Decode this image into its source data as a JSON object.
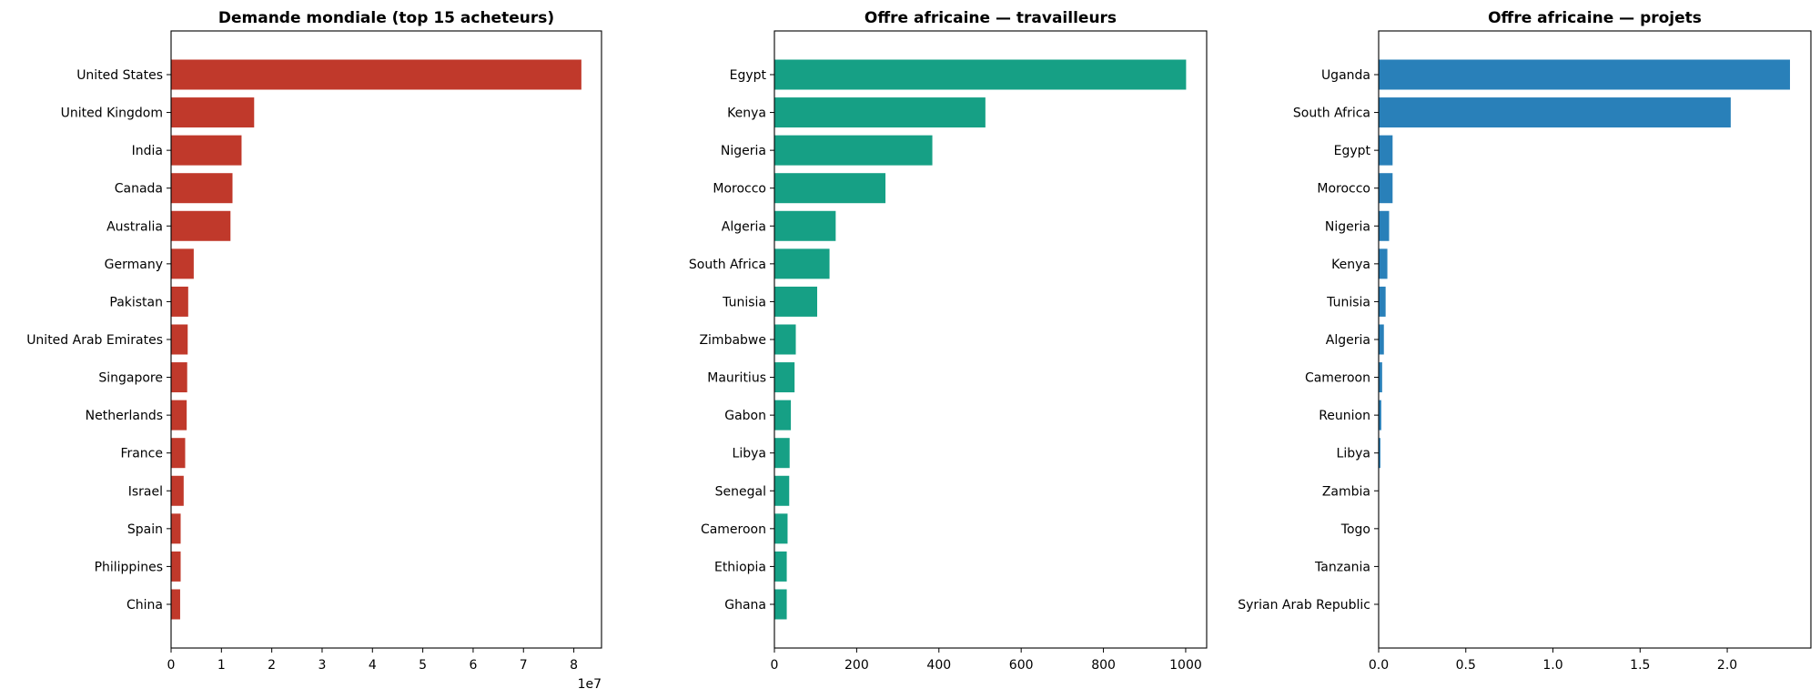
{
  "chart_data": [
    {
      "type": "bar",
      "orientation": "horizontal",
      "title": "Demande mondiale (top 15 acheteurs)",
      "color": "#c0392b",
      "categories": [
        "United States",
        "United Kingdom",
        "India",
        "Canada",
        "Australia",
        "Germany",
        "Pakistan",
        "United Arab Emirates",
        "Singapore",
        "Netherlands",
        "France",
        "Israel",
        "Spain",
        "Philippines",
        "China"
      ],
      "values": [
        81500000,
        16500000,
        14000000,
        12200000,
        11800000,
        4500000,
        3400000,
        3300000,
        3200000,
        3100000,
        2800000,
        2500000,
        1900000,
        1900000,
        1800000
      ],
      "xlim": [
        0,
        85500000
      ],
      "xticks": [
        0,
        10000000,
        20000000,
        30000000,
        40000000,
        50000000,
        60000000,
        70000000,
        80000000
      ],
      "xtick_labels": [
        "0",
        "1",
        "2",
        "3",
        "4",
        "5",
        "6",
        "7",
        "8"
      ],
      "offset_label": "1e7",
      "xlabel": "",
      "ylabel": "",
      "grid": false
    },
    {
      "type": "bar",
      "orientation": "horizontal",
      "title": "Offre africaine — travailleurs",
      "color": "#16a085",
      "categories": [
        "Egypt",
        "Kenya",
        "Nigeria",
        "Morocco",
        "Algeria",
        "South Africa",
        "Tunisia",
        "Zimbabwe",
        "Mauritius",
        "Gabon",
        "Libya",
        "Senegal",
        "Cameroon",
        "Ethiopia",
        "Ghana"
      ],
      "values": [
        1001,
        513,
        384,
        270,
        149,
        134,
        104,
        52,
        49,
        40,
        37,
        36,
        32,
        30,
        30
      ],
      "xlim": [
        0,
        1051
      ],
      "xticks": [
        0,
        200,
        400,
        600,
        800,
        1000
      ],
      "xtick_labels": [
        "0",
        "200",
        "400",
        "600",
        "800",
        "1000"
      ],
      "xlabel": "",
      "ylabel": "",
      "grid": false
    },
    {
      "type": "bar",
      "orientation": "horizontal",
      "title": "Offre africaine — projets",
      "color": "#2980b9",
      "categories": [
        "Uganda",
        "South Africa",
        "Egypt",
        "Morocco",
        "Nigeria",
        "Kenya",
        "Tunisia",
        "Algeria",
        "Cameroon",
        "Reunion",
        "Libya",
        "Zambia",
        "Togo",
        "Tanzania",
        "Syrian Arab Republic"
      ],
      "values": [
        2.36,
        2.02,
        0.08,
        0.08,
        0.06,
        0.05,
        0.04,
        0.03,
        0.02,
        0.015,
        0.01,
        0.002,
        0.002,
        0.001,
        0.001
      ],
      "xlim": [
        0,
        2.48
      ],
      "xticks": [
        0,
        0.5,
        1.0,
        1.5,
        2.0
      ],
      "xtick_labels": [
        "0.0",
        "0.5",
        "1.0",
        "1.5",
        "2.0"
      ],
      "xlabel": "",
      "ylabel": "",
      "grid": false
    }
  ]
}
